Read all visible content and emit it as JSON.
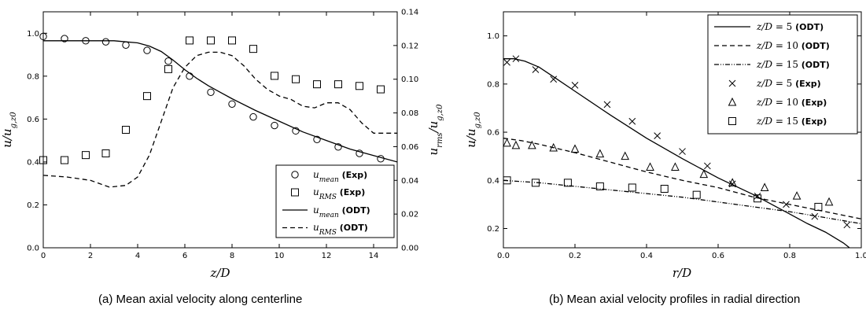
{
  "captions": {
    "a": "(a) Mean axial velocity along centerline",
    "b": "(b) Mean axial velocity profiles in radial direction"
  },
  "chart_data": [
    {
      "type": "line",
      "xlabel": "z/D",
      "ylabel": "u/u_{g,z0}",
      "y2label": "u_{rms}/u_{g,z0}",
      "xlim": [
        0,
        15
      ],
      "ylim": [
        0,
        1.1
      ],
      "y2lim": [
        0,
        0.14
      ],
      "xticks": [
        "0",
        "2",
        "4",
        "6",
        "8",
        "10",
        "12",
        "14"
      ],
      "yticks": [
        "0.0",
        "0.2",
        "0.4",
        "0.6",
        "0.8",
        "1.0"
      ],
      "y2ticks": [
        "0.00",
        "0.02",
        "0.04",
        "0.06",
        "0.08",
        "0.10",
        "0.12",
        "0.14"
      ],
      "legend_position": "lower-right",
      "series": [
        {
          "name": "u_mean (Exp)",
          "marker": "circle",
          "axis": "left",
          "x": [
            0.0,
            0.9,
            1.8,
            2.65,
            3.5,
            4.4,
            5.3,
            6.2,
            7.1,
            8.0,
            8.9,
            9.8,
            10.7,
            11.6,
            12.5,
            13.4,
            14.3
          ],
          "y": [
            0.985,
            0.975,
            0.965,
            0.96,
            0.945,
            0.92,
            0.87,
            0.8,
            0.725,
            0.67,
            0.61,
            0.57,
            0.545,
            0.505,
            0.47,
            0.44,
            0.415
          ]
        },
        {
          "name": "u_RMS (Exp)",
          "marker": "square",
          "axis": "right",
          "x": [
            0.0,
            0.9,
            1.8,
            2.65,
            3.5,
            4.4,
            5.3,
            6.2,
            7.1,
            8.0,
            8.9,
            9.8,
            10.7,
            11.6,
            12.5,
            13.4,
            14.3
          ],
          "y": [
            0.052,
            0.052,
            0.055,
            0.056,
            0.07,
            0.09,
            0.106,
            0.123,
            0.123,
            0.123,
            0.118,
            0.102,
            0.1,
            0.097,
            0.097,
            0.096,
            0.094
          ]
        },
        {
          "name": "u_mean (ODT)",
          "line": "solid",
          "axis": "left",
          "x": [
            0,
            1,
            2,
            3,
            3.5,
            4,
            4.5,
            5,
            5.5,
            6,
            6.5,
            7,
            7.5,
            8,
            9,
            10,
            11,
            12,
            13,
            14,
            15
          ],
          "y": [
            0.965,
            0.965,
            0.965,
            0.965,
            0.96,
            0.955,
            0.94,
            0.915,
            0.875,
            0.83,
            0.79,
            0.755,
            0.725,
            0.695,
            0.64,
            0.59,
            0.54,
            0.5,
            0.46,
            0.43,
            0.4
          ]
        },
        {
          "name": "u_RMS (ODT)",
          "line": "dashed",
          "axis": "right",
          "x": [
            0,
            1,
            2,
            2.8,
            3.5,
            4,
            4.5,
            5,
            5.5,
            6,
            6.5,
            7,
            7.5,
            8,
            8.5,
            9,
            9.5,
            10,
            10.5,
            11,
            11.5,
            12,
            12.5,
            13,
            13.5,
            14,
            14.5,
            15
          ],
          "y": [
            0.043,
            0.042,
            0.04,
            0.036,
            0.037,
            0.042,
            0.055,
            0.075,
            0.095,
            0.107,
            0.114,
            0.116,
            0.116,
            0.114,
            0.108,
            0.1,
            0.094,
            0.09,
            0.088,
            0.084,
            0.083,
            0.086,
            0.086,
            0.082,
            0.074,
            0.068,
            0.068,
            0.068
          ]
        }
      ]
    },
    {
      "type": "line",
      "xlabel": "r/D",
      "ylabel": "u/u_{g,z0}",
      "xlim": [
        0,
        1.0
      ],
      "ylim": [
        0.12,
        1.1
      ],
      "xticks": [
        "0.0",
        "0.2",
        "0.4",
        "0.6",
        "0.8",
        "1.0"
      ],
      "yticks": [
        "0.2",
        "0.4",
        "0.6",
        "0.8",
        "1.0"
      ],
      "legend_position": "top-right",
      "series": [
        {
          "name": "z/D = 5 (ODT)",
          "line": "solid",
          "x": [
            0,
            0.03,
            0.06,
            0.1,
            0.15,
            0.2,
            0.3,
            0.4,
            0.5,
            0.6,
            0.7,
            0.75,
            0.8,
            0.85,
            0.9,
            0.95,
            0.98
          ],
          "y": [
            0.905,
            0.905,
            0.895,
            0.87,
            0.82,
            0.77,
            0.67,
            0.575,
            0.49,
            0.41,
            0.34,
            0.3,
            0.26,
            0.22,
            0.185,
            0.14,
            0.105
          ]
        },
        {
          "name": "z/D = 10 (ODT)",
          "line": "dashed",
          "x": [
            0,
            0.05,
            0.1,
            0.2,
            0.3,
            0.4,
            0.5,
            0.6,
            0.7,
            0.8,
            0.9,
            1.0
          ],
          "y": [
            0.575,
            0.565,
            0.55,
            0.515,
            0.475,
            0.435,
            0.4,
            0.37,
            0.33,
            0.3,
            0.27,
            0.24
          ]
        },
        {
          "name": "z/D = 15 (ODT)",
          "line": "dash-dot-dot",
          "x": [
            0,
            0.1,
            0.2,
            0.3,
            0.4,
            0.5,
            0.6,
            0.7,
            0.8,
            0.9,
            1.0
          ],
          "y": [
            0.4,
            0.39,
            0.375,
            0.36,
            0.345,
            0.33,
            0.31,
            0.29,
            0.27,
            0.245,
            0.22
          ]
        },
        {
          "name": "z/D = 5 (Exp)",
          "marker": "x",
          "x": [
            0.01,
            0.035,
            0.09,
            0.14,
            0.2,
            0.29,
            0.36,
            0.43,
            0.5,
            0.57,
            0.64,
            0.71,
            0.79,
            0.87,
            0.96
          ],
          "y": [
            0.89,
            0.905,
            0.86,
            0.82,
            0.795,
            0.715,
            0.645,
            0.585,
            0.52,
            0.46,
            0.385,
            0.335,
            0.3,
            0.25,
            0.215
          ]
        },
        {
          "name": "z/D = 10 (Exp)",
          "marker": "triangle",
          "x": [
            0.01,
            0.035,
            0.08,
            0.14,
            0.2,
            0.27,
            0.34,
            0.41,
            0.48,
            0.56,
            0.64,
            0.73,
            0.82,
            0.91
          ],
          "y": [
            0.555,
            0.545,
            0.545,
            0.535,
            0.53,
            0.51,
            0.5,
            0.455,
            0.455,
            0.425,
            0.39,
            0.37,
            0.335,
            0.31
          ]
        },
        {
          "name": "z/D = 15 (Exp)",
          "marker": "square",
          "x": [
            0.01,
            0.09,
            0.18,
            0.27,
            0.36,
            0.45,
            0.54,
            0.71,
            0.88
          ],
          "y": [
            0.4,
            0.39,
            0.39,
            0.375,
            0.37,
            0.365,
            0.34,
            0.325,
            0.29
          ]
        }
      ]
    }
  ]
}
